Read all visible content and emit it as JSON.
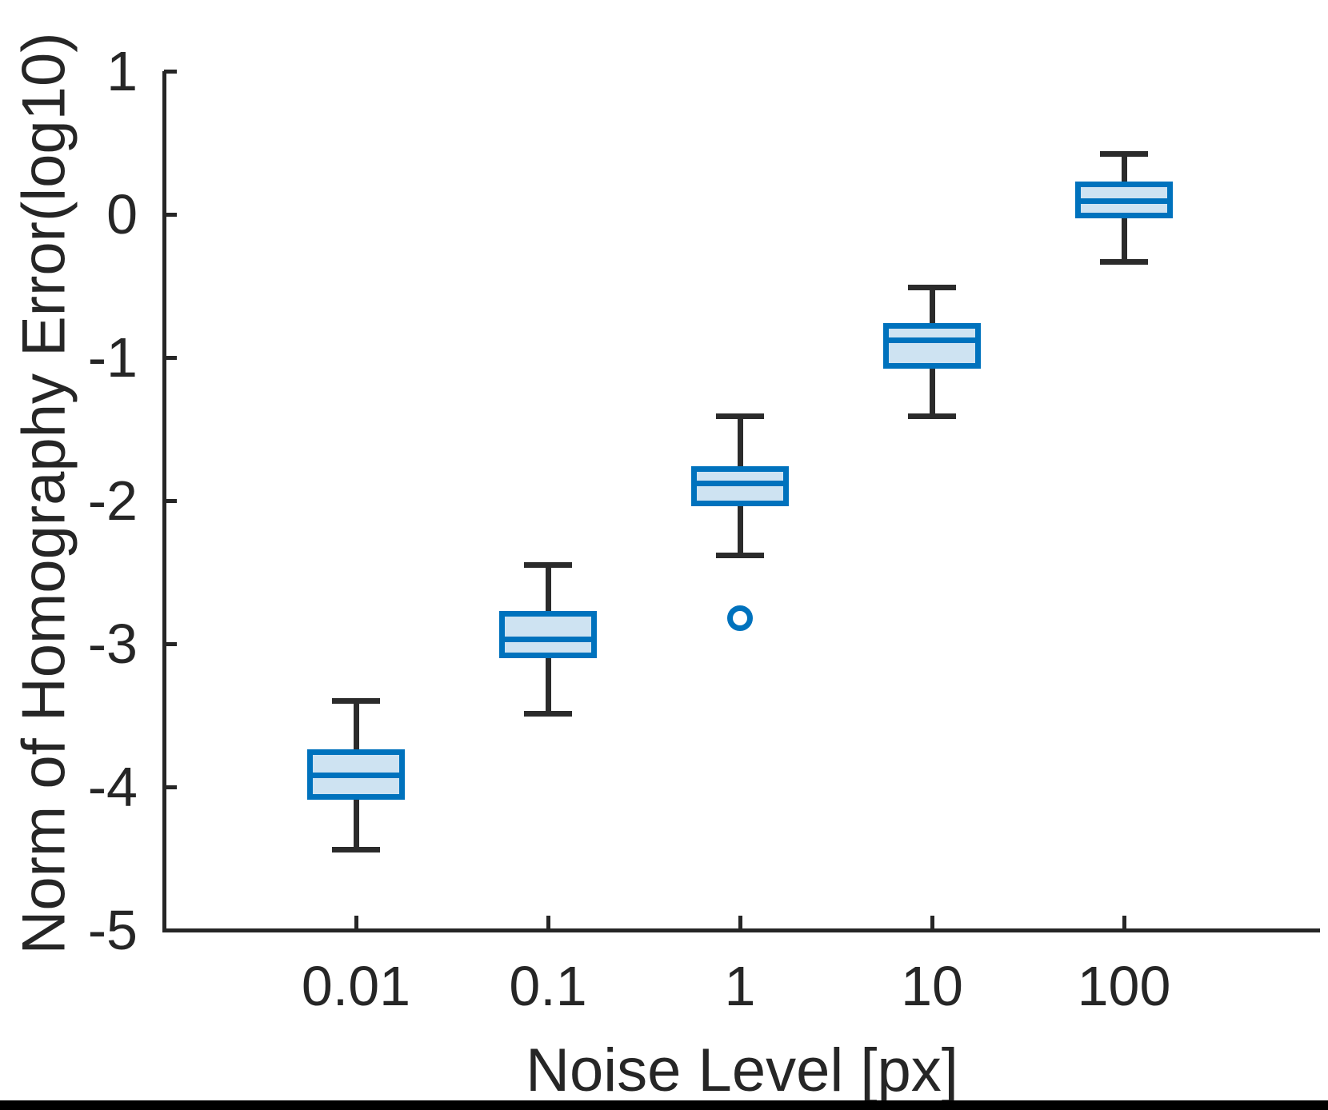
{
  "chart_data": {
    "type": "box",
    "title": "",
    "xlabel": "Noise Level [px]",
    "ylabel": "Norm of Homography Error(log10)",
    "categories": [
      "0.01",
      "0.1",
      "1",
      "10",
      "100"
    ],
    "ylim": [
      -5,
      1
    ],
    "yticks": [
      1,
      0,
      -1,
      -2,
      -3,
      -4,
      -5
    ],
    "grid": false,
    "legend": null,
    "boxes": [
      {
        "category": "0.01",
        "whisker_low": -4.44,
        "q1": -4.09,
        "median": -3.92,
        "q3": -3.74,
        "whisker_high": -3.4,
        "outliers": []
      },
      {
        "category": "0.1",
        "whisker_low": -3.49,
        "q1": -3.1,
        "median": -2.97,
        "q3": -2.77,
        "whisker_high": -2.45,
        "outliers": []
      },
      {
        "category": "1",
        "whisker_low": -2.38,
        "q1": -2.04,
        "median": -1.88,
        "q3": -1.76,
        "whisker_high": -1.41,
        "outliers": [
          -2.82
        ]
      },
      {
        "category": "10",
        "whisker_low": -1.41,
        "q1": -1.08,
        "median": -0.88,
        "q3": -0.76,
        "whisker_high": -0.51,
        "outliers": []
      },
      {
        "category": "100",
        "whisker_low": -0.33,
        "q1": -0.03,
        "median": 0.09,
        "q3": 0.23,
        "whisker_high": 0.42,
        "outliers": []
      }
    ],
    "colors": {
      "box_edge": "#0072BD",
      "box_fill": "#CEE3F2",
      "median": "#0072BD",
      "outlier": "#0072BD",
      "whisker": "#2B2B2B",
      "axis": "#262626",
      "bottom_bar": "#000000"
    }
  }
}
